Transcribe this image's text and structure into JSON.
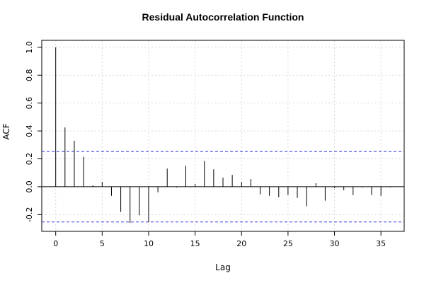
{
  "chart_data": {
    "type": "bar",
    "title": "Residual Autocorrelation Function",
    "xlabel": "Lag",
    "ylabel": "ACF",
    "xlim": [
      -1.5,
      37.5
    ],
    "ylim": [
      -0.32,
      1.05
    ],
    "x_ticks": [
      0,
      5,
      10,
      15,
      20,
      25,
      30,
      35
    ],
    "y_ticks": [
      -0.2,
      0.0,
      0.2,
      0.4,
      0.6,
      0.8,
      1.0
    ],
    "y_tick_labels": [
      "-0.2",
      "0.0",
      "0.2",
      "0.4",
      "0.6",
      "0.8",
      "1.0"
    ],
    "grid": true,
    "lags": [
      0,
      1,
      2,
      3,
      4,
      5,
      6,
      7,
      8,
      9,
      10,
      11,
      12,
      13,
      14,
      15,
      16,
      17,
      18,
      19,
      20,
      21,
      22,
      23,
      24,
      25,
      26,
      27,
      28,
      29,
      30,
      31,
      32,
      33,
      34,
      35,
      36
    ],
    "values": [
      1.0,
      0.425,
      0.33,
      0.215,
      0.01,
      0.035,
      -0.065,
      -0.18,
      -0.26,
      -0.205,
      -0.255,
      -0.04,
      0.13,
      -0.005,
      0.15,
      0.02,
      0.185,
      0.125,
      0.065,
      0.085,
      0.035,
      0.055,
      -0.055,
      -0.065,
      -0.075,
      -0.06,
      -0.08,
      -0.14,
      0.025,
      -0.1,
      -0.01,
      -0.025,
      -0.06,
      -0.005,
      -0.06,
      -0.065,
      -0.005
    ],
    "confidence_limits": [
      0.253,
      -0.253
    ],
    "colors": {
      "bars": "#000000",
      "confidence": "#3030e0",
      "grid": "#d9d9d9",
      "axes": "#000000"
    }
  }
}
